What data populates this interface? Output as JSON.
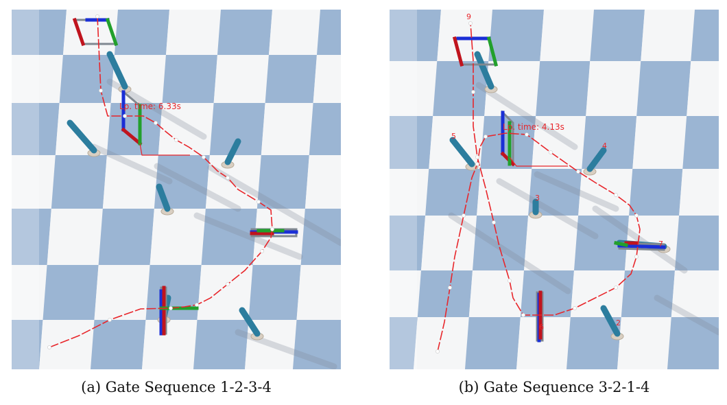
{
  "panels": [
    {
      "caption": "(a) Gate Sequence 1-2-3-4",
      "time_label": "Lp. time: 6.33s",
      "gate_labels": []
    },
    {
      "caption": "(b) Gate Sequence 3-2-1-4",
      "time_label": "Lp. time: 4.13s",
      "gate_labels": [
        "9",
        "5",
        "4",
        "3",
        "7",
        "6",
        "2"
      ]
    }
  ],
  "colors": {
    "tile_blue": "#9bb5d3",
    "tile_white": "#f5f6f7",
    "trajectory": "#e8252a",
    "gate_x_axis": "#c0141e",
    "gate_y_axis": "#22a02c",
    "gate_z_axis": "#1a2fd6",
    "pole": "#2c7d9e",
    "label": "#e8252a"
  }
}
